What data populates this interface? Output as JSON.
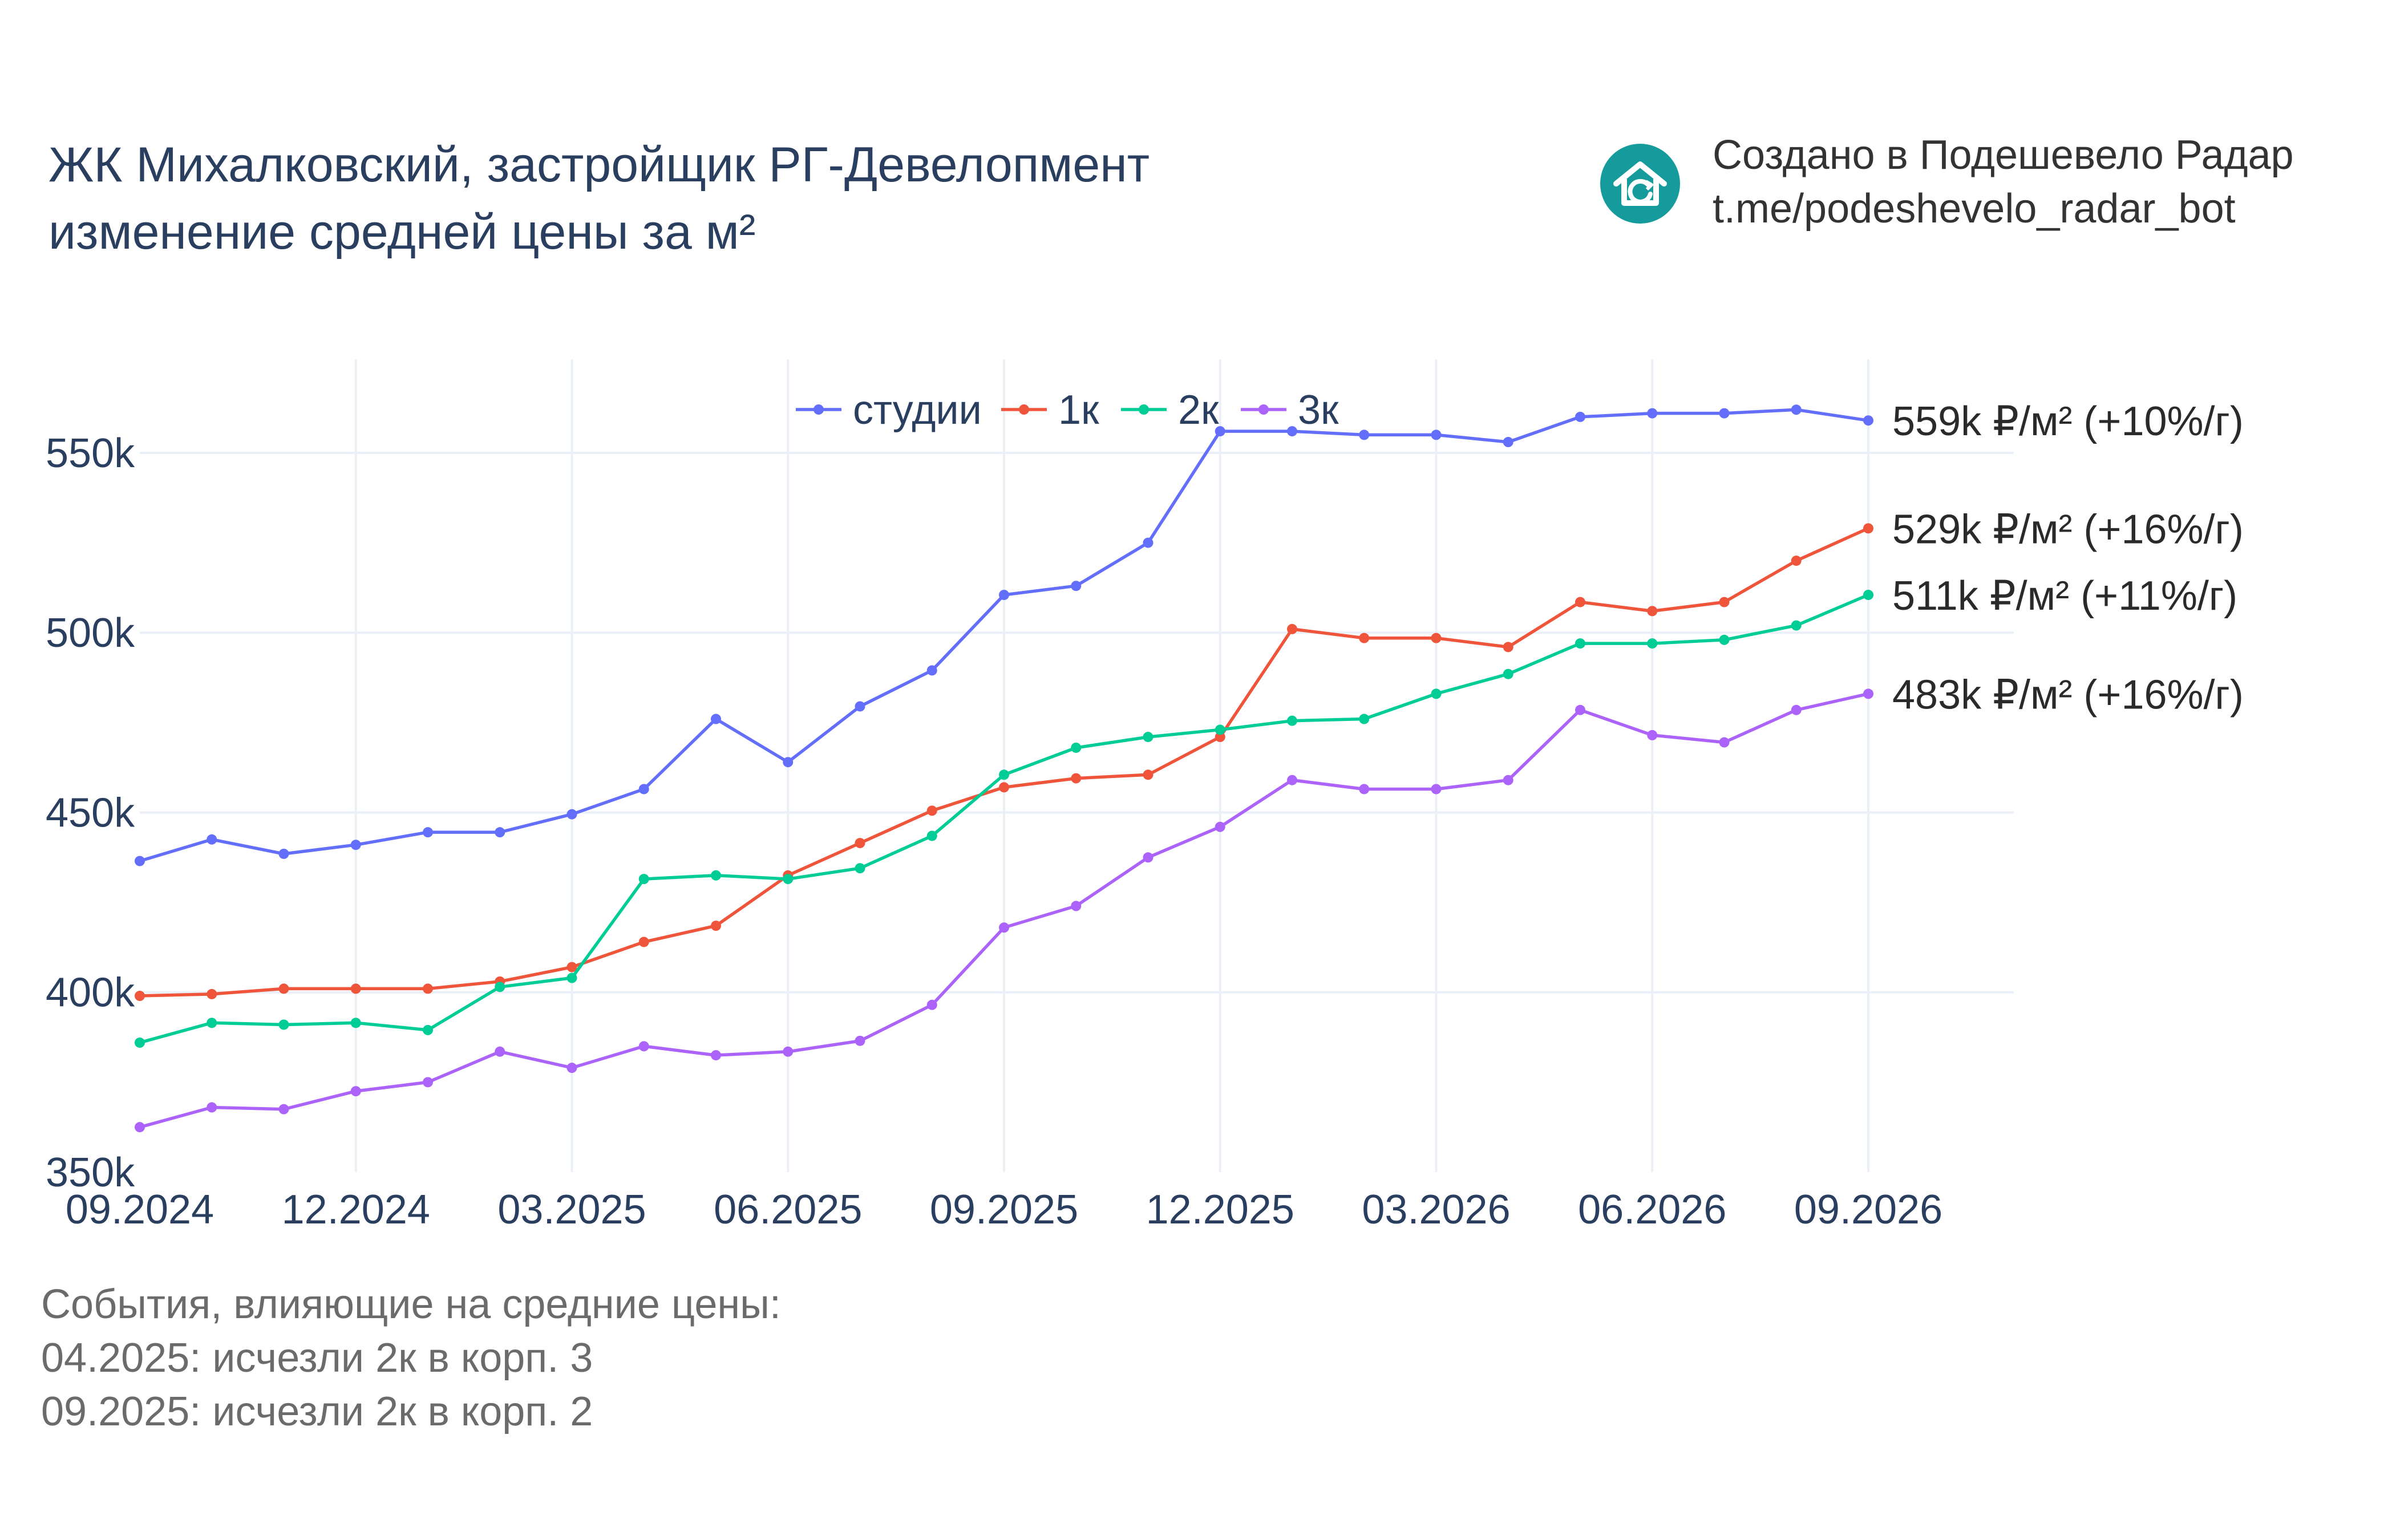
{
  "header": {
    "title_line1": "ЖК Михалковский, застройщик РГ-Девелопмент",
    "title_line2": "изменение средней цены за м²"
  },
  "branding": {
    "icon": "house-logo-icon",
    "line1": "Создано в Подешевело Радар",
    "line2": "t.me/podeshevelo_radar_bot",
    "icon_color": "#159b9b"
  },
  "events": {
    "heading": "События, влияющие на средние цены:",
    "items": [
      "04.2025: исчезли 2к в корп. 3",
      "09.2025: исчезли 2к в корп. 2"
    ]
  },
  "chart_data": {
    "type": "line",
    "x": [
      "09.2024",
      "10.2024",
      "11.2024",
      "12.2024",
      "01.2025",
      "02.2025",
      "03.2025",
      "04.2025",
      "05.2025",
      "06.2025",
      "07.2025",
      "08.2025",
      "09.2025",
      "10.2025",
      "11.2025",
      "12.2025",
      "01.2026",
      "02.2026",
      "03.2026",
      "04.2026",
      "05.2026",
      "06.2026",
      "07.2026",
      "08.2026",
      "09.2026"
    ],
    "x_tick_labels": [
      "09.2024",
      "12.2024",
      "03.2025",
      "06.2025",
      "09.2025",
      "12.2025",
      "03.2026",
      "06.2026",
      "09.2026"
    ],
    "y_tick_labels": [
      "350k",
      "400k",
      "450k",
      "500k",
      "550k"
    ],
    "y_ticks": [
      350000,
      400000,
      450000,
      500000,
      550000
    ],
    "ylim": [
      350000,
      576000
    ],
    "grid": true,
    "legend_placement": "top-center",
    "series": [
      {
        "name": "студии",
        "color": "#636efa",
        "end_label": "559k ₽/м² (+10%/г)",
        "values": [
          436500,
          442500,
          438500,
          441000,
          444500,
          444500,
          449500,
          456500,
          476000,
          464000,
          479500,
          489500,
          510500,
          513000,
          525000,
          556000,
          556000,
          555000,
          555000,
          553000,
          560000,
          561000,
          561000,
          562000,
          559000
        ]
      },
      {
        "name": "1к",
        "color": "#ef553b",
        "end_label": "529k ₽/м² (+16%/г)",
        "values": [
          399000,
          399500,
          401000,
          401000,
          401000,
          403000,
          407000,
          414000,
          418500,
          432500,
          441500,
          450500,
          457000,
          459500,
          460500,
          471000,
          501000,
          498500,
          498500,
          496000,
          508500,
          506000,
          508500,
          520000,
          529000
        ]
      },
      {
        "name": "2к",
        "color": "#00cc96",
        "end_label": "511k ₽/м² (+11%/г)",
        "values": [
          386000,
          391500,
          391000,
          391500,
          389500,
          401500,
          404000,
          431500,
          432500,
          431500,
          434500,
          443500,
          460500,
          468000,
          471000,
          473000,
          475500,
          476000,
          483000,
          488500,
          497000,
          497000,
          498000,
          502000,
          510500
        ]
      },
      {
        "name": "3к",
        "color": "#ab63fa",
        "end_label": "483k ₽/м² (+16%/г)",
        "values": [
          362500,
          368000,
          367500,
          372500,
          375000,
          383500,
          379000,
          385000,
          382500,
          383500,
          386500,
          396500,
          418000,
          424000,
          437500,
          446000,
          459000,
          456500,
          456500,
          459000,
          478500,
          471500,
          469500,
          478500,
          483000
        ]
      }
    ]
  }
}
